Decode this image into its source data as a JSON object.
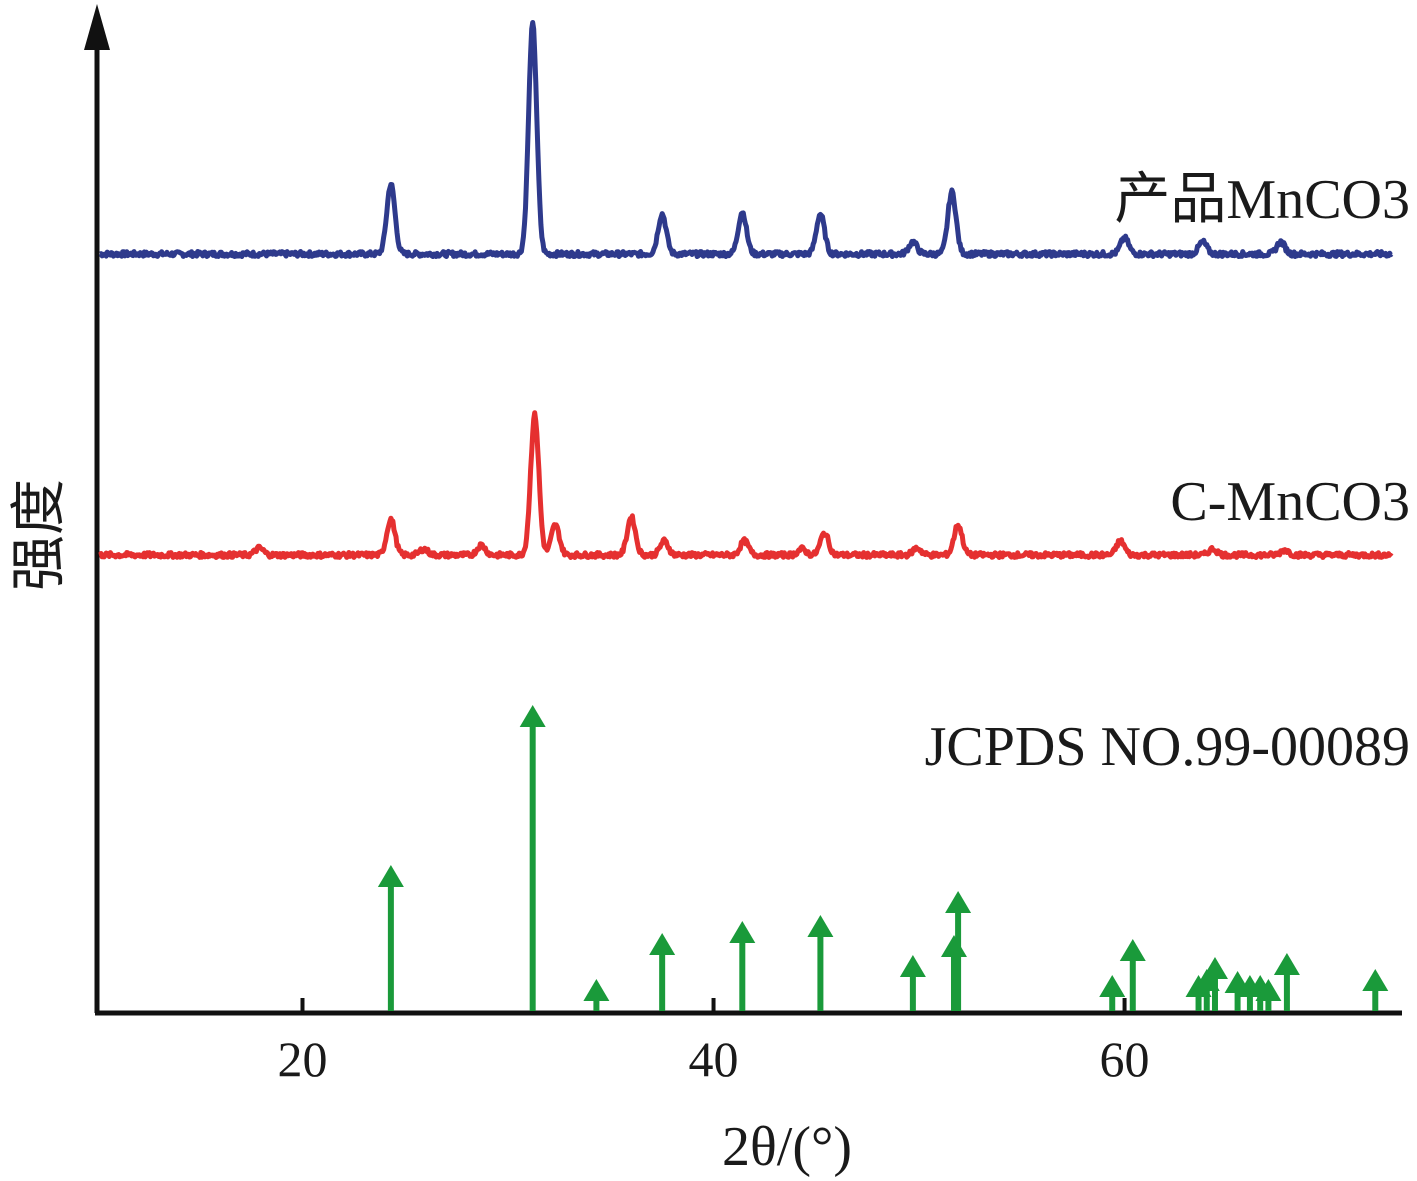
{
  "chart_data": {
    "type": "line",
    "xlabel": "2θ/(°)",
    "ylabel": "强度",
    "xlim": [
      10,
      73.5
    ],
    "x_ticks": [
      20,
      40,
      60
    ],
    "grid": false,
    "series": [
      {
        "name": "产品MnCO3",
        "color": "#2e3a8c",
        "baseline": 0,
        "peaks": [
          {
            "x": 24.3,
            "h": 70
          },
          {
            "x": 31.2,
            "h": 230
          },
          {
            "x": 37.5,
            "h": 40
          },
          {
            "x": 41.4,
            "h": 42
          },
          {
            "x": 45.2,
            "h": 40
          },
          {
            "x": 49.7,
            "h": 12
          },
          {
            "x": 51.6,
            "h": 62
          },
          {
            "x": 60.0,
            "h": 16
          },
          {
            "x": 63.8,
            "h": 12
          },
          {
            "x": 67.6,
            "h": 12
          }
        ]
      },
      {
        "name": "C-MnCO3",
        "color": "#e53030",
        "baseline": 0,
        "peaks": [
          {
            "x": 17.9,
            "h": 7
          },
          {
            "x": 24.3,
            "h": 36
          },
          {
            "x": 25.9,
            "h": 6
          },
          {
            "x": 28.7,
            "h": 10
          },
          {
            "x": 31.3,
            "h": 140
          },
          {
            "x": 32.3,
            "h": 30
          },
          {
            "x": 36.0,
            "h": 38
          },
          {
            "x": 37.6,
            "h": 14
          },
          {
            "x": 41.5,
            "h": 14
          },
          {
            "x": 44.3,
            "h": 6
          },
          {
            "x": 45.4,
            "h": 22
          },
          {
            "x": 49.9,
            "h": 7
          },
          {
            "x": 51.9,
            "h": 30
          },
          {
            "x": 59.8,
            "h": 14
          },
          {
            "x": 64.3,
            "h": 6
          },
          {
            "x": 67.8,
            "h": 5
          }
        ]
      },
      {
        "name": "JCPDS NO.99-00089",
        "color": "#1a9a3a",
        "type": "stick",
        "values": [
          {
            "x": 24.3,
            "y": 140
          },
          {
            "x": 31.2,
            "y": 300
          },
          {
            "x": 34.3,
            "y": 26
          },
          {
            "x": 37.5,
            "y": 72
          },
          {
            "x": 41.4,
            "y": 84
          },
          {
            "x": 45.2,
            "y": 90
          },
          {
            "x": 49.7,
            "y": 50
          },
          {
            "x": 51.7,
            "y": 70
          },
          {
            "x": 51.9,
            "y": 114
          },
          {
            "x": 59.4,
            "y": 30
          },
          {
            "x": 60.4,
            "y": 66
          },
          {
            "x": 63.6,
            "y": 30
          },
          {
            "x": 64.0,
            "y": 36
          },
          {
            "x": 64.4,
            "y": 48
          },
          {
            "x": 65.5,
            "y": 34
          },
          {
            "x": 66.1,
            "y": 30
          },
          {
            "x": 66.6,
            "y": 30
          },
          {
            "x": 67.0,
            "y": 26
          },
          {
            "x": 67.9,
            "y": 52
          },
          {
            "x": 72.2,
            "y": 36
          }
        ]
      }
    ]
  }
}
